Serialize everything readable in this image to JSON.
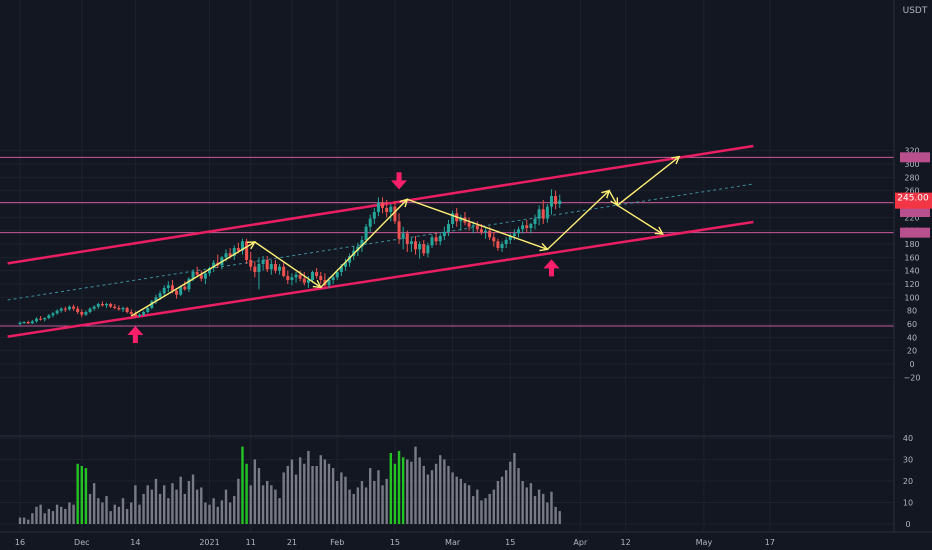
{
  "chart_data": {
    "type": "candlestick",
    "quote_currency": "USDT",
    "last_price_label": "245.00",
    "price_scale_ticks": [
      "320",
      "300",
      "280",
      "260",
      "240",
      "220",
      "200",
      "180",
      "160",
      "140",
      "120",
      "100",
      "80",
      "60",
      "40",
      "20",
      "0",
      "−20"
    ],
    "volume_scale_ticks": [
      "40",
      "30",
      "20",
      "10",
      "0"
    ],
    "time_labels": [
      {
        "label": "16",
        "day": 0
      },
      {
        "label": "Dec",
        "day": 15
      },
      {
        "label": "14",
        "day": 28
      },
      {
        "label": "2021",
        "day": 46
      },
      {
        "label": "11",
        "day": 56
      },
      {
        "label": "21",
        "day": 66
      },
      {
        "label": "Feb",
        "day": 77
      },
      {
        "label": "15",
        "day": 91
      },
      {
        "label": "Mar",
        "day": 105
      },
      {
        "label": "15",
        "day": 119
      },
      {
        "label": "Apr",
        "day": 136
      },
      {
        "label": "12",
        "day": 147
      },
      {
        "label": "May",
        "day": 166
      },
      {
        "label": "17",
        "day": 182
      }
    ],
    "horizontal_levels": [
      310,
      242,
      197,
      57
    ],
    "channel": {
      "upper": [
        {
          "day": -3,
          "price": 151
        },
        {
          "day": 178,
          "price": 327
        }
      ],
      "lower": [
        {
          "day": -3,
          "price": 41
        },
        {
          "day": 178,
          "price": 213
        }
      ],
      "mid": [
        {
          "day": -3,
          "price": 96
        },
        {
          "day": 178,
          "price": 270
        }
      ]
    },
    "zigzag_path": [
      {
        "day": 27,
        "price": 72
      },
      {
        "day": 57,
        "price": 183
      },
      {
        "day": 73,
        "price": 115
      },
      {
        "day": 94,
        "price": 247
      },
      {
        "day": 128,
        "price": 172
      },
      {
        "day": 143,
        "price": 260
      },
      {
        "day": 145,
        "price": 238
      },
      {
        "day": 160,
        "price": 311
      }
    ],
    "zigzag_branch": [
      {
        "day": 145,
        "price": 238
      },
      {
        "day": 156,
        "price": 195
      }
    ],
    "arrows_up_days": [
      28,
      129
    ],
    "arrows_down_days": [
      92
    ],
    "candles": [
      [
        60,
        64,
        58,
        62,
        3
      ],
      [
        62,
        64,
        60,
        63,
        3
      ],
      [
        63,
        65,
        60,
        61,
        2
      ],
      [
        61,
        66,
        60,
        64,
        5
      ],
      [
        64,
        70,
        62,
        68,
        8
      ],
      [
        68,
        72,
        65,
        67,
        9
      ],
      [
        67,
        70,
        64,
        69,
        5
      ],
      [
        69,
        75,
        67,
        73,
        7
      ],
      [
        73,
        78,
        70,
        76,
        6
      ],
      [
        76,
        82,
        74,
        80,
        9
      ],
      [
        80,
        85,
        77,
        83,
        8
      ],
      [
        83,
        86,
        78,
        82,
        7
      ],
      [
        82,
        88,
        80,
        86,
        10
      ],
      [
        86,
        89,
        80,
        83,
        9
      ],
      [
        83,
        87,
        75,
        78,
        28
      ],
      [
        78,
        82,
        70,
        74,
        27
      ],
      [
        74,
        80,
        72,
        78,
        26
      ],
      [
        78,
        85,
        76,
        83,
        14
      ],
      [
        83,
        88,
        80,
        86,
        19
      ],
      [
        86,
        92,
        83,
        90,
        12
      ],
      [
        90,
        94,
        86,
        88,
        10
      ],
      [
        88,
        92,
        84,
        90,
        13
      ],
      [
        90,
        92,
        84,
        86,
        6
      ],
      [
        86,
        90,
        82,
        84,
        9
      ],
      [
        84,
        88,
        80,
        82,
        8
      ],
      [
        82,
        86,
        78,
        84,
        12
      ],
      [
        84,
        86,
        76,
        78,
        7
      ],
      [
        78,
        82,
        73,
        75,
        10
      ],
      [
        75,
        79,
        70,
        72,
        18
      ],
      [
        72,
        76,
        70,
        74,
        9
      ],
      [
        74,
        80,
        72,
        78,
        14
      ],
      [
        78,
        86,
        76,
        84,
        18
      ],
      [
        84,
        96,
        82,
        94,
        16
      ],
      [
        94,
        104,
        90,
        100,
        21
      ],
      [
        100,
        110,
        96,
        106,
        14
      ],
      [
        106,
        118,
        102,
        114,
        18
      ],
      [
        114,
        124,
        108,
        118,
        12
      ],
      [
        118,
        126,
        106,
        110,
        19
      ],
      [
        110,
        114,
        98,
        104,
        16
      ],
      [
        104,
        118,
        102,
        116,
        22
      ],
      [
        116,
        124,
        110,
        112,
        14
      ],
      [
        112,
        130,
        108,
        128,
        20
      ],
      [
        128,
        142,
        124,
        138,
        23
      ],
      [
        138,
        146,
        130,
        134,
        16
      ],
      [
        134,
        140,
        124,
        128,
        17
      ],
      [
        128,
        138,
        120,
        136,
        10
      ],
      [
        136,
        146,
        132,
        144,
        9
      ],
      [
        144,
        156,
        138,
        152,
        12
      ],
      [
        152,
        164,
        144,
        148,
        8
      ],
      [
        148,
        162,
        142,
        160,
        11
      ],
      [
        160,
        172,
        154,
        166,
        16
      ],
      [
        166,
        174,
        158,
        162,
        10
      ],
      [
        162,
        178,
        156,
        174,
        13
      ],
      [
        174,
        182,
        166,
        170,
        21
      ],
      [
        170,
        188,
        164,
        184,
        36
      ],
      [
        184,
        188,
        150,
        156,
        28
      ],
      [
        156,
        168,
        140,
        146,
        18
      ],
      [
        146,
        154,
        130,
        138,
        30
      ],
      [
        138,
        160,
        112,
        150,
        26
      ],
      [
        150,
        162,
        140,
        156,
        18
      ],
      [
        156,
        162,
        138,
        142,
        20
      ],
      [
        142,
        156,
        134,
        150,
        18
      ],
      [
        150,
        156,
        136,
        140,
        16
      ],
      [
        140,
        150,
        134,
        146,
        12
      ],
      [
        146,
        152,
        130,
        132,
        24
      ],
      [
        132,
        140,
        120,
        126,
        27
      ],
      [
        126,
        136,
        118,
        130,
        30
      ],
      [
        130,
        138,
        122,
        134,
        23
      ],
      [
        134,
        140,
        124,
        128,
        31
      ],
      [
        128,
        138,
        118,
        122,
        28
      ],
      [
        122,
        132,
        114,
        126,
        34
      ],
      [
        126,
        140,
        122,
        138,
        27
      ],
      [
        138,
        144,
        128,
        132,
        27
      ],
      [
        132,
        138,
        120,
        126,
        32
      ],
      [
        126,
        136,
        116,
        118,
        30
      ],
      [
        118,
        130,
        114,
        126,
        28
      ],
      [
        126,
        134,
        120,
        130,
        26
      ],
      [
        130,
        142,
        126,
        138,
        20
      ],
      [
        138,
        150,
        132,
        146,
        24
      ],
      [
        146,
        158,
        140,
        152,
        22
      ],
      [
        152,
        166,
        146,
        162,
        16
      ],
      [
        162,
        176,
        156,
        170,
        14
      ],
      [
        170,
        182,
        162,
        176,
        17
      ],
      [
        176,
        192,
        168,
        186,
        20
      ],
      [
        186,
        210,
        180,
        206,
        17
      ],
      [
        206,
        224,
        198,
        218,
        26
      ],
      [
        218,
        234,
        210,
        228,
        20
      ],
      [
        228,
        250,
        222,
        242,
        25
      ],
      [
        242,
        250,
        226,
        234,
        18
      ],
      [
        234,
        246,
        220,
        228,
        21
      ],
      [
        228,
        240,
        214,
        236,
        33
      ],
      [
        236,
        244,
        210,
        214,
        28
      ],
      [
        214,
        226,
        180,
        188,
        34
      ],
      [
        188,
        206,
        172,
        196,
        31
      ],
      [
        196,
        200,
        168,
        180,
        30
      ],
      [
        180,
        190,
        168,
        184,
        29
      ],
      [
        184,
        192,
        164,
        172,
        36
      ],
      [
        172,
        184,
        158,
        180,
        31
      ],
      [
        180,
        186,
        162,
        166,
        27
      ],
      [
        166,
        182,
        160,
        178,
        23
      ],
      [
        178,
        194,
        174,
        190,
        25
      ],
      [
        190,
        198,
        178,
        184,
        28
      ],
      [
        184,
        196,
        178,
        192,
        32
      ],
      [
        192,
        206,
        186,
        198,
        30
      ],
      [
        198,
        216,
        192,
        210,
        27
      ],
      [
        210,
        230,
        204,
        226,
        24
      ],
      [
        226,
        234,
        206,
        214,
        22
      ],
      [
        214,
        224,
        200,
        220,
        21
      ],
      [
        220,
        228,
        208,
        212,
        19
      ],
      [
        212,
        220,
        200,
        206,
        18
      ],
      [
        206,
        214,
        196,
        208,
        13
      ],
      [
        208,
        214,
        198,
        202,
        16
      ],
      [
        202,
        210,
        194,
        198,
        11
      ],
      [
        198,
        206,
        188,
        200,
        12
      ],
      [
        200,
        206,
        186,
        190,
        14
      ],
      [
        190,
        198,
        176,
        184,
        16
      ],
      [
        184,
        188,
        170,
        174,
        20
      ],
      [
        174,
        184,
        168,
        180,
        22
      ],
      [
        180,
        190,
        174,
        186,
        25
      ],
      [
        186,
        196,
        180,
        192,
        29
      ],
      [
        192,
        202,
        186,
        196,
        33
      ],
      [
        196,
        206,
        190,
        202,
        26
      ],
      [
        202,
        214,
        196,
        208,
        20
      ],
      [
        208,
        216,
        198,
        204,
        17
      ],
      [
        204,
        212,
        196,
        210,
        19
      ],
      [
        210,
        224,
        202,
        218,
        13
      ],
      [
        218,
        238,
        208,
        232,
        16
      ],
      [
        232,
        246,
        210,
        218,
        14
      ],
      [
        218,
        240,
        212,
        236,
        10
      ],
      [
        236,
        262,
        224,
        252,
        15
      ],
      [
        252,
        260,
        232,
        240,
        8
      ],
      [
        240,
        254,
        234,
        245,
        6
      ]
    ]
  }
}
